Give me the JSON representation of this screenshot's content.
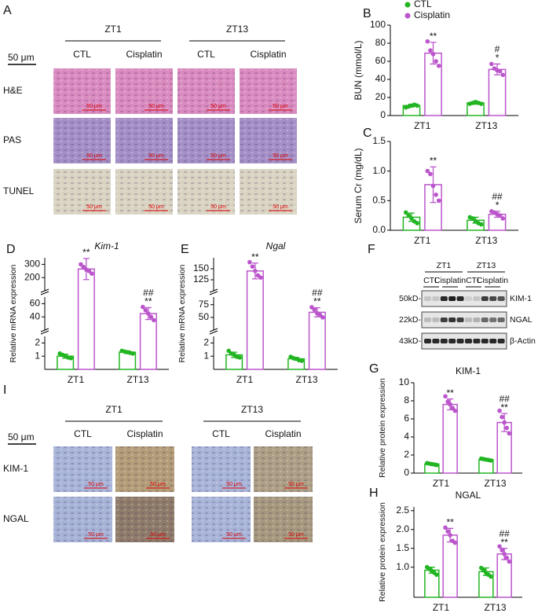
{
  "chart_data": [
    {
      "type": "bar",
      "panel": "B",
      "ylabel": "BUN (mmol/L)",
      "categories": [
        "ZT1",
        "ZT13"
      ],
      "ylim": [
        0,
        100
      ],
      "yticks": [
        0,
        20,
        40,
        60,
        80,
        100
      ],
      "legend": "top-left",
      "series": [
        {
          "name": "CTL",
          "color": "#22b522",
          "values": [
            11,
            14
          ],
          "errors": [
            1.5,
            1.5
          ],
          "points": [
            [
              9,
              10,
              11,
              12,
              11
            ],
            [
              13,
              14,
              15,
              14,
              13
            ]
          ]
        },
        {
          "name": "Cisplatin",
          "color": "#bb55cc",
          "values": [
            69,
            51
          ],
          "errors": [
            12,
            6
          ],
          "points": [
            [
              82,
              72,
              68,
              60,
              55
            ],
            [
              57,
              52,
              50,
              49,
              45
            ]
          ],
          "annotations": [
            [
              "**"
            ],
            [
              "#",
              "*"
            ]
          ]
        }
      ]
    },
    {
      "type": "bar",
      "panel": "C",
      "ylabel": "Serum Cr (mg/dL)",
      "categories": [
        "ZT1",
        "ZT13"
      ],
      "ylim": [
        0,
        1.5
      ],
      "yticks": [
        {
          "value": 0,
          "label": "0.0"
        },
        {
          "value": 0.5,
          "label": "0.5"
        },
        {
          "value": 1,
          "label": "1.0"
        },
        {
          "value": 1.5,
          "label": "1.5"
        }
      ],
      "series": [
        {
          "name": "CTL",
          "color": "#22b522",
          "values": [
            0.22,
            0.17
          ],
          "errors": [
            0.07,
            0.05
          ],
          "points": [
            [
              0.3,
              0.25,
              0.2,
              0.15,
              0.12
            ],
            [
              0.22,
              0.2,
              0.15,
              0.12,
              0.1
            ]
          ]
        },
        {
          "name": "Cisplatin",
          "color": "#bb55cc",
          "values": [
            0.77,
            0.27
          ],
          "errors": [
            0.3,
            0.05
          ],
          "points": [
            [
              1.0,
              0.95,
              0.75,
              0.6,
              0.5
            ],
            [
              0.32,
              0.3,
              0.27,
              0.25,
              0.2
            ]
          ],
          "annotations": [
            [
              "**"
            ],
            [
              "##",
              "*"
            ]
          ]
        }
      ]
    },
    {
      "type": "bar",
      "panel": "D",
      "title": "Kim-1",
      "ylabel": "Relative mRNA expression",
      "categories": [
        "ZT1",
        "ZT13"
      ],
      "segments": [
        {
          "ylim": [
            0,
            2.5
          ],
          "yticks": [
            1,
            2
          ]
        },
        {
          "ylim": [
            20,
            70
          ],
          "yticks": [
            40,
            60
          ]
        },
        {
          "ylim": [
            100,
            350
          ],
          "yticks": [
            200,
            300
          ]
        }
      ],
      "series": [
        {
          "name": "CTL",
          "color": "#22b522",
          "values": [
            1.0,
            1.3
          ],
          "errors": [
            0.15,
            0.1
          ],
          "points": [
            [
              1.2,
              1.1,
              1.0,
              0.9,
              0.85
            ],
            [
              1.4,
              1.35,
              1.3,
              1.25,
              1.2
            ]
          ]
        },
        {
          "name": "Cisplatin",
          "color": "#bb55cc",
          "values": [
            265,
            45
          ],
          "errors": [
            80,
            9
          ],
          "points": [
            [
              300,
              280,
              260,
              250,
              230
            ],
            [
              55,
              50,
              45,
              40,
              35
            ]
          ],
          "annotations": [
            [
              "**"
            ],
            [
              "##",
              "**"
            ]
          ]
        }
      ]
    },
    {
      "type": "bar",
      "panel": "E",
      "title": "Ngal",
      "ylabel": "Relative mRNA expression",
      "categories": [
        "ZT1",
        "ZT13"
      ],
      "segments": [
        {
          "ylim": [
            0,
            2.5
          ],
          "yticks": [
            1,
            2
          ]
        },
        {
          "ylim": [
            25,
            90
          ],
          "yticks": [
            50,
            75
          ]
        },
        {
          "ylim": [
            100,
            175
          ],
          "yticks": [
            125,
            150
          ]
        }
      ],
      "series": [
        {
          "name": "CTL",
          "color": "#22b522",
          "values": [
            1.1,
            0.8
          ],
          "errors": [
            0.2,
            0.1
          ],
          "points": [
            [
              1.4,
              1.2,
              1.1,
              0.95,
              0.9
            ],
            [
              0.95,
              0.85,
              0.8,
              0.7,
              0.65
            ]
          ]
        },
        {
          "name": "Cisplatin",
          "color": "#bb55cc",
          "values": [
            145,
            60
          ],
          "errors": [
            18,
            9
          ],
          "points": [
            [
              165,
              155,
              145,
              135,
              130
            ],
            [
              70,
              65,
              58,
              55,
              50
            ]
          ],
          "annotations": [
            [
              "**"
            ],
            [
              "##",
              "**"
            ]
          ]
        }
      ]
    },
    {
      "type": "bar",
      "panel": "G",
      "title": "KIM-1",
      "ylabel": "Relative protein expression",
      "categories": [
        "ZT1",
        "ZT13"
      ],
      "ylim": [
        0,
        10
      ],
      "yticks": [
        0,
        2,
        4,
        6,
        8,
        10
      ],
      "series": [
        {
          "name": "CTL",
          "color": "#22b522",
          "values": [
            1.0,
            1.5
          ],
          "errors": [
            0.1,
            0.1
          ],
          "points": [
            [
              1.1,
              1.05,
              1.0,
              0.95,
              0.9
            ],
            [
              1.6,
              1.55,
              1.5,
              1.45,
              1.4
            ]
          ]
        },
        {
          "name": "Cisplatin",
          "color": "#bb55cc",
          "values": [
            7.6,
            5.6
          ],
          "errors": [
            0.6,
            1.0
          ],
          "points": [
            [
              8.5,
              7.9,
              7.6,
              7.2,
              6.9
            ],
            [
              6.9,
              6.2,
              5.6,
              5.0,
              4.4
            ]
          ],
          "annotations": [
            [
              "**"
            ],
            [
              "##",
              "**"
            ]
          ]
        }
      ]
    },
    {
      "type": "bar",
      "panel": "H",
      "title": "NGAL",
      "ylabel": "Relative protein expression",
      "categories": [
        "ZT1",
        "ZT13"
      ],
      "ylim": [
        0.2,
        2.6
      ],
      "yticks": [
        {
          "value": 1,
          "label": "1.0"
        },
        {
          "value": 1.5,
          "label": "1.5"
        },
        {
          "value": 2,
          "label": "2.0"
        },
        {
          "value": 2.5,
          "label": "2.5"
        }
      ],
      "series": [
        {
          "name": "CTL",
          "color": "#22b522",
          "values": [
            0.92,
            0.88
          ],
          "errors": [
            0.08,
            0.1
          ],
          "points": [
            [
              1.0,
              0.95,
              0.9,
              0.85,
              0.8
            ],
            [
              0.98,
              0.92,
              0.85,
              0.8,
              0.75
            ]
          ]
        },
        {
          "name": "Cisplatin",
          "color": "#bb55cc",
          "values": [
            1.85,
            1.35
          ],
          "errors": [
            0.18,
            0.15
          ],
          "points": [
            [
              2.05,
              1.95,
              1.85,
              1.7,
              1.65
            ],
            [
              1.55,
              1.45,
              1.35,
              1.25,
              1.15
            ]
          ],
          "annotations": [
            [
              "**"
            ],
            [
              "##",
              "**"
            ]
          ]
        }
      ]
    }
  ],
  "histology_A": {
    "panel": "A",
    "groups": [
      "ZT1",
      "ZT13"
    ],
    "columns": [
      "CTL",
      "Cisplatin",
      "CTL",
      "Cisplatin"
    ],
    "rows": [
      "H&E",
      "PAS",
      "TUNEL"
    ],
    "scale": "50 μm"
  },
  "western_F": {
    "panel": "F",
    "groups": [
      "ZT1",
      "ZT13"
    ],
    "lanes": [
      "CTL",
      "Cisplatin",
      "CTL",
      "Cisplatin"
    ],
    "bands": [
      {
        "size": "50kD-",
        "name": "KIM-1"
      },
      {
        "size": "22kD-",
        "name": "NGAL"
      },
      {
        "size": "43kD-",
        "name": "β-Actin"
      }
    ]
  },
  "ihc_I": {
    "panel": "I",
    "groups": [
      "ZT1",
      "ZT13"
    ],
    "columns": [
      "CTL",
      "Cisplatin",
      "CTL",
      "Cisplatin"
    ],
    "rows": [
      "KIM-1",
      "NGAL"
    ],
    "scale": "50 μm"
  }
}
